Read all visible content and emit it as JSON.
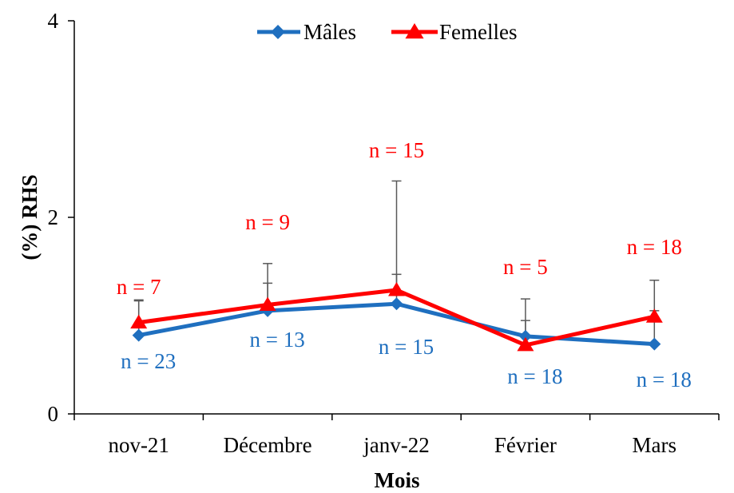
{
  "chart_data": {
    "type": "line",
    "title": "",
    "xlabel": "Mois",
    "ylabel": "(%) RHS",
    "categories": [
      "nov-21",
      "Décembre",
      "janv-22",
      "Février",
      "Mars"
    ],
    "ylim": [
      0,
      4
    ],
    "yticks": [
      "0",
      "2",
      "4"
    ],
    "grid": false,
    "legend_position": "top",
    "series": [
      {
        "name": "Mâles",
        "color": "#1F6FBF",
        "marker": "diamond",
        "values": [
          0.8,
          1.05,
          1.12,
          0.79,
          0.71
        ],
        "error_upper": [
          1.15,
          1.33,
          1.42,
          0.95,
          1.05
        ],
        "n_labels": [
          "n = 23",
          "n = 13",
          "n = 15",
          "n = 18",
          "n = 18"
        ]
      },
      {
        "name": "Femelles",
        "color": "#FF0000",
        "marker": "triangle",
        "values": [
          0.93,
          1.11,
          1.26,
          0.7,
          0.99
        ],
        "error_upper": [
          1.16,
          1.53,
          2.37,
          1.17,
          1.36
        ],
        "n_labels": [
          "n = 7",
          "n = 9",
          "n = 15",
          "n = 5",
          "n = 18"
        ]
      }
    ],
    "error_bar_color": "#595959"
  }
}
